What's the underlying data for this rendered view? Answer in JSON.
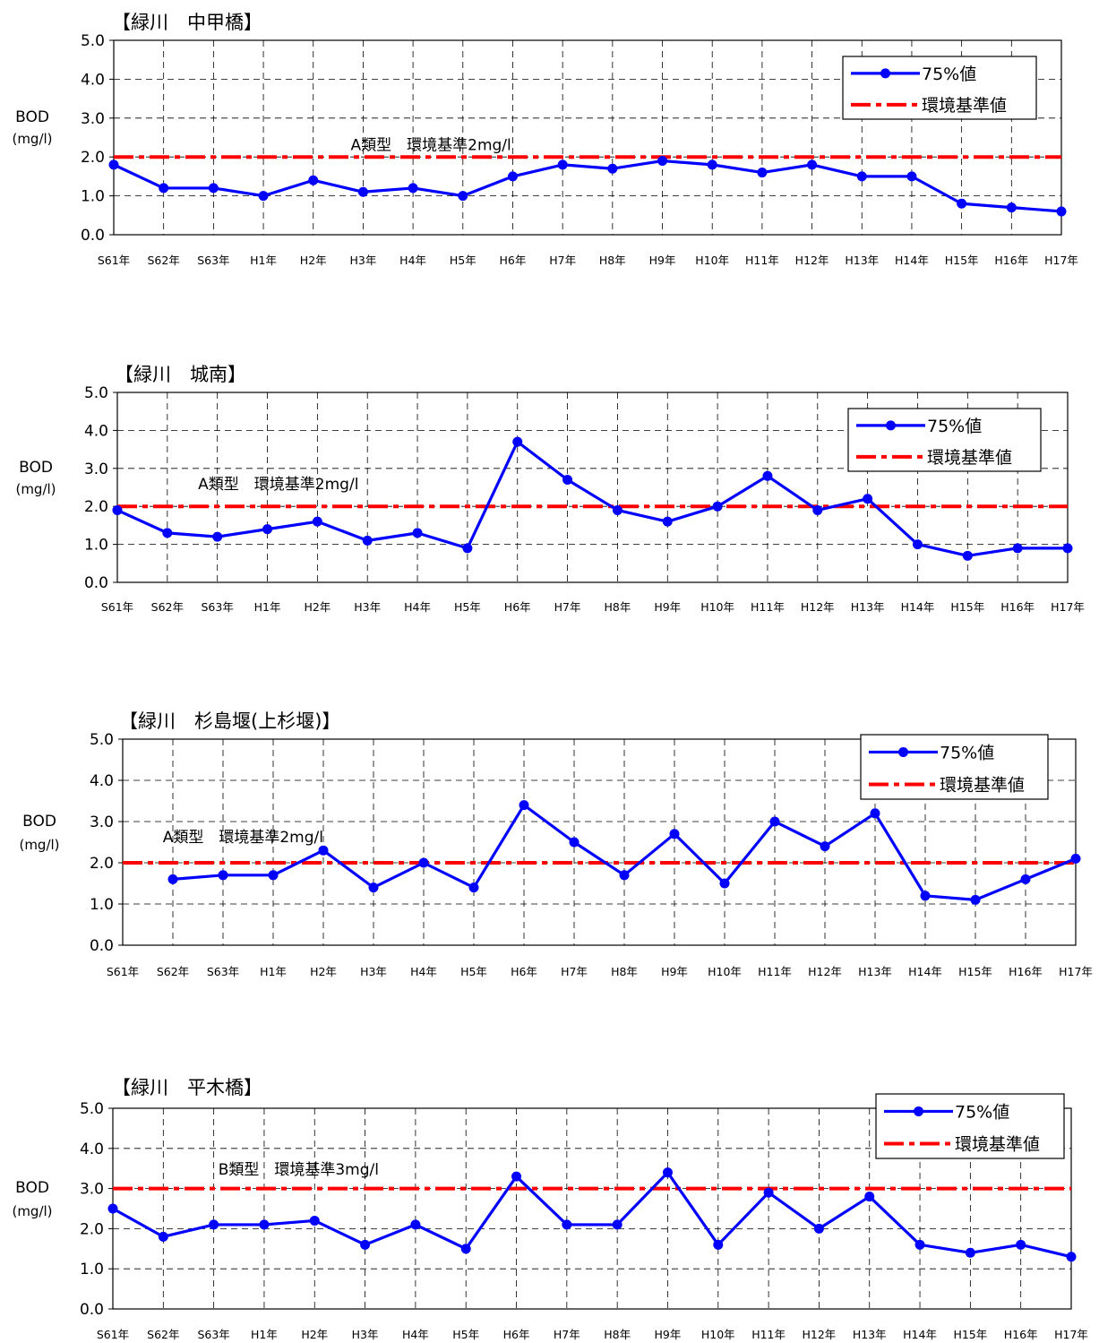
{
  "chart_data": [
    {
      "type": "line",
      "title": "【緑川　中甲橋】",
      "ylabel": "BOD",
      "ylabel_unit": "(mg/l)",
      "ylim": [
        0,
        5
      ],
      "yticks": [
        "0.0",
        "1.0",
        "2.0",
        "3.0",
        "4.0",
        "5.0"
      ],
      "grid": true,
      "legend_position": "top-right",
      "categories": [
        "S61年",
        "S62年",
        "S63年",
        "H1年",
        "H2年",
        "H3年",
        "H4年",
        "H5年",
        "H6年",
        "H7年",
        "H8年",
        "H9年",
        "H10年",
        "H11年",
        "H12年",
        "H13年",
        "H14年",
        "H15年",
        "H16年",
        "H17年"
      ],
      "series": [
        {
          "name": "75%値",
          "color": "#0000ff",
          "style": "line-marker",
          "values": [
            1.8,
            1.2,
            1.2,
            1.0,
            1.4,
            1.1,
            1.2,
            1.0,
            1.5,
            1.8,
            1.7,
            1.9,
            1.8,
            1.6,
            1.8,
            1.5,
            1.5,
            0.8,
            0.7,
            0.6
          ]
        },
        {
          "name": "環境基準値",
          "color": "#ff0000",
          "style": "dash-dot",
          "value": 2.0
        }
      ],
      "annotation": "A類型　環境基準2mg/l",
      "annotation_pos": {
        "x": 0.25,
        "y": 2.18
      }
    },
    {
      "type": "line",
      "title": "【緑川　城南】",
      "ylabel": "BOD",
      "ylabel_unit": "(mg/l)",
      "ylim": [
        0,
        5
      ],
      "yticks": [
        "0.0",
        "1.0",
        "2.0",
        "3.0",
        "4.0",
        "5.0"
      ],
      "grid": true,
      "legend_position": "top-right",
      "categories": [
        "S61年",
        "S62年",
        "S63年",
        "H1年",
        "H2年",
        "H3年",
        "H4年",
        "H5年",
        "H6年",
        "H7年",
        "H8年",
        "H9年",
        "H10年",
        "H11年",
        "H12年",
        "H13年",
        "H14年",
        "H15年",
        "H16年",
        "H17年"
      ],
      "series": [
        {
          "name": "75%値",
          "color": "#0000ff",
          "style": "line-marker",
          "values": [
            1.9,
            1.3,
            1.2,
            1.4,
            1.6,
            1.1,
            1.3,
            0.9,
            3.7,
            2.7,
            1.9,
            1.6,
            2.0,
            2.8,
            1.9,
            2.2,
            1.0,
            0.7,
            0.9,
            0.9
          ]
        },
        {
          "name": "環境基準値",
          "color": "#ff0000",
          "style": "dash-dot",
          "value": 2.0
        }
      ],
      "annotation": "A類型　環境基準2mg/l",
      "annotation_pos": {
        "x": 0.085,
        "y": 2.45
      }
    },
    {
      "type": "line",
      "title": "【緑川　杉島堰(上杉堰)】",
      "ylabel": "BOD",
      "ylabel_unit": "(mg/l)",
      "ylim": [
        0,
        5
      ],
      "yticks": [
        "0.0",
        "1.0",
        "2.0",
        "3.0",
        "4.0",
        "5.0"
      ],
      "grid": true,
      "legend_position": "top-right",
      "categories": [
        "S61年",
        "S62年",
        "S63年",
        "H1年",
        "H2年",
        "H3年",
        "H4年",
        "H5年",
        "H6年",
        "H7年",
        "H8年",
        "H9年",
        "H10年",
        "H11年",
        "H12年",
        "H13年",
        "H14年",
        "H15年",
        "H16年",
        "H17年"
      ],
      "series": [
        {
          "name": "75%値",
          "color": "#0000ff",
          "style": "line-marker",
          "values": [
            null,
            1.6,
            1.7,
            1.7,
            2.3,
            1.4,
            2.0,
            1.4,
            3.4,
            2.5,
            1.7,
            2.7,
            1.5,
            3.0,
            2.4,
            3.2,
            1.2,
            1.1,
            1.6,
            2.1
          ]
        },
        {
          "name": "環境基準値",
          "color": "#ff0000",
          "style": "dash-dot",
          "value": 2.0
        }
      ],
      "annotation": "A類型　環境基準2mg/l",
      "annotation_pos": {
        "x": 0.042,
        "y": 2.5
      }
    },
    {
      "type": "line",
      "title": "【緑川　平木橋】",
      "ylabel": "BOD",
      "ylabel_unit": "(mg/l)",
      "ylim": [
        0,
        5
      ],
      "yticks": [
        "0.0",
        "1.0",
        "2.0",
        "3.0",
        "4.0",
        "5.0"
      ],
      "grid": true,
      "legend_position": "top-right",
      "categories": [
        "S61年",
        "S62年",
        "S63年",
        "H1年",
        "H2年",
        "H3年",
        "H4年",
        "H5年",
        "H6年",
        "H7年",
        "H8年",
        "H9年",
        "H10年",
        "H11年",
        "H12年",
        "H13年",
        "H14年",
        "H15年",
        "H16年",
        "H17年"
      ],
      "series": [
        {
          "name": "75%値",
          "color": "#0000ff",
          "style": "line-marker",
          "values": [
            2.5,
            1.8,
            2.1,
            2.1,
            2.2,
            1.6,
            2.1,
            1.5,
            3.3,
            2.1,
            2.1,
            3.4,
            1.6,
            2.9,
            2.0,
            2.8,
            1.6,
            1.4,
            1.6,
            1.3
          ]
        },
        {
          "name": "環境基準値",
          "color": "#ff0000",
          "style": "dash-dot",
          "value": 3.0
        }
      ],
      "annotation": "B類型　環境基準3mg/l",
      "annotation_pos": {
        "x": 0.11,
        "y": 3.35
      }
    }
  ]
}
